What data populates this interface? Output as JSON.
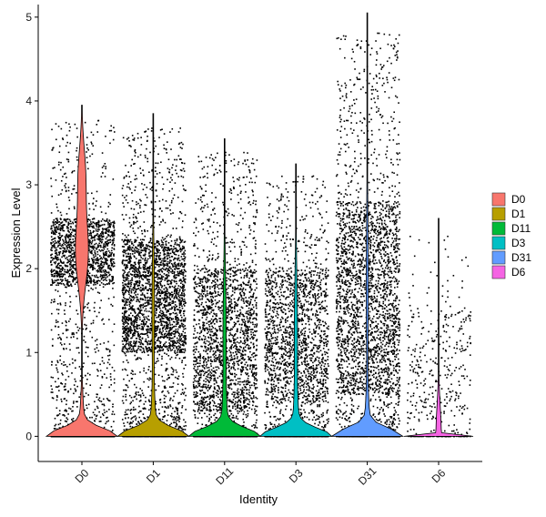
{
  "chart_data": {
    "type": "violin",
    "title": "",
    "xlabel": "Identity",
    "ylabel": "Expression Level",
    "ylim": [
      -0.3,
      5.15
    ],
    "yticks": [
      0,
      1,
      2,
      3,
      4,
      5
    ],
    "grid": false,
    "legend_position": "right",
    "categories": [
      "D0",
      "D1",
      "D11",
      "D3",
      "D31",
      "D6"
    ],
    "colors": [
      "#F8766D",
      "#B79F00",
      "#00BA38",
      "#00BFC4",
      "#619CFF",
      "#F564E3"
    ],
    "series": [
      {
        "name": "D0",
        "max": 3.95,
        "n_points": 2600,
        "zero_frac": 0.25,
        "dense_range": [
          1.8,
          2.6
        ],
        "dense_frac": 0.45
      },
      {
        "name": "D1",
        "max": 3.85,
        "n_points": 3200,
        "zero_frac": 0.12,
        "dense_range": [
          1.0,
          2.35
        ],
        "dense_frac": 0.55
      },
      {
        "name": "D11",
        "max": 3.55,
        "n_points": 2600,
        "zero_frac": 0.15,
        "dense_range": [
          0.3,
          2.0
        ],
        "dense_frac": 0.5
      },
      {
        "name": "D3",
        "max": 3.25,
        "n_points": 2200,
        "zero_frac": 0.15,
        "dense_range": [
          0.4,
          2.0
        ],
        "dense_frac": 0.5
      },
      {
        "name": "D31",
        "max": 5.05,
        "n_points": 3200,
        "zero_frac": 0.12,
        "dense_range": [
          0.5,
          2.8
        ],
        "dense_frac": 0.55
      },
      {
        "name": "D6",
        "max": 2.6,
        "n_points": 450,
        "zero_frac": 0.2,
        "dense_range": [
          0.2,
          1.5
        ],
        "dense_frac": 0.5
      }
    ]
  }
}
